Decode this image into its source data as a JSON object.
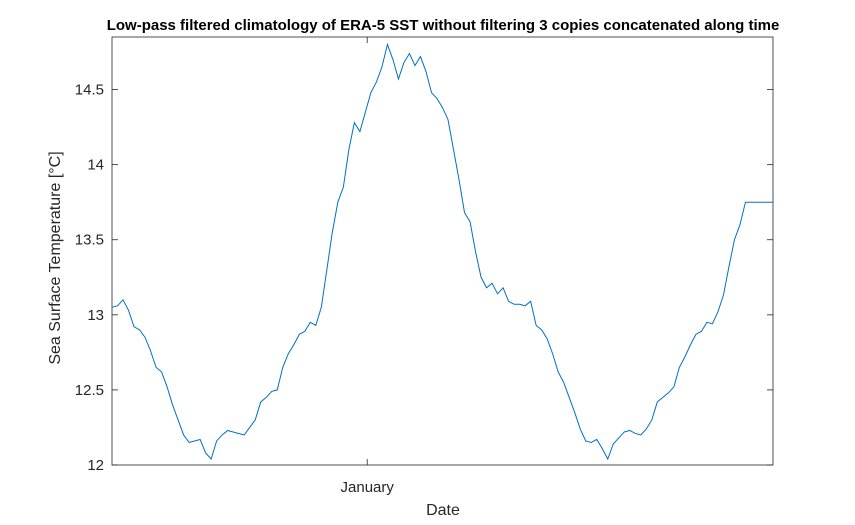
{
  "chart_data": {
    "type": "line",
    "title": "Low-pass filtered climatology of ERA-5 SST without filtering 3 copies concatenated along time",
    "xlabel": "Date",
    "ylabel": "Sea Surface Temperature [°C]",
    "ylim": [
      12,
      14.85
    ],
    "yticks": [
      12,
      12.5,
      13,
      13.5,
      14,
      14.5
    ],
    "ytick_labels": [
      "12",
      "12.5",
      "13",
      "13.5",
      "14",
      "14.5"
    ],
    "xlim": [
      0,
      360
    ],
    "xticks": [
      139
    ],
    "xtick_labels": [
      "January"
    ],
    "grid": false,
    "series": [
      {
        "color": "#0072bd",
        "x": [
          0,
          3,
          6,
          9,
          12,
          15,
          18,
          21,
          24,
          27,
          30,
          33,
          36,
          39,
          42,
          45,
          48,
          51,
          54,
          57,
          60,
          63,
          66,
          69,
          72,
          75,
          78,
          81,
          84,
          87,
          90,
          93,
          96,
          99,
          102,
          105,
          108,
          111,
          114,
          117,
          120,
          123,
          126,
          129,
          132,
          135,
          138,
          141,
          144,
          147,
          150,
          153,
          156,
          159,
          162,
          165,
          168,
          171,
          174,
          177,
          180,
          183,
          186,
          189,
          192,
          195,
          198,
          201,
          204,
          207,
          210,
          213,
          216,
          219,
          222,
          225,
          228,
          231,
          234,
          237,
          240,
          243,
          246,
          249,
          252,
          255,
          258,
          261,
          264,
          267,
          270,
          273,
          276,
          279,
          282,
          285,
          288,
          291,
          294,
          297,
          300,
          303,
          306,
          309,
          312,
          315,
          318,
          321,
          324,
          327,
          330,
          333,
          336,
          339,
          342,
          345,
          348,
          351,
          354,
          357,
          360
        ],
        "y": [
          13.05,
          13.06,
          13.1,
          13.03,
          12.92,
          12.9,
          12.85,
          12.76,
          12.65,
          12.62,
          12.52,
          12.4,
          12.3,
          12.2,
          12.15,
          12.16,
          12.17,
          12.08,
          12.04,
          12.16,
          12.2,
          12.23,
          12.22,
          12.21,
          12.2,
          12.25,
          12.3,
          12.42,
          12.45,
          12.49,
          12.5,
          12.65,
          12.74,
          12.8,
          12.87,
          12.89,
          12.95,
          12.93,
          13.05,
          13.3,
          13.55,
          13.75,
          13.85,
          14.1,
          14.28,
          14.22,
          14.35,
          14.48,
          14.55,
          14.65,
          14.8,
          14.7,
          14.57,
          14.68,
          14.74,
          14.66,
          14.72,
          14.62,
          14.48,
          14.44,
          14.38,
          14.3,
          14.1,
          13.9,
          13.68,
          13.62,
          13.42,
          13.25,
          13.18,
          13.21,
          13.14,
          13.18,
          13.09,
          13.07,
          13.07,
          13.06,
          13.09,
          12.93,
          12.9,
          12.84,
          12.74,
          12.62,
          12.55,
          12.45,
          12.35,
          12.24,
          12.16,
          12.15,
          12.17,
          12.11,
          12.04,
          12.14,
          12.18,
          12.22,
          12.23,
          12.21,
          12.2,
          12.24,
          12.3,
          12.42,
          12.45,
          12.48,
          12.52,
          12.65,
          12.72,
          12.8,
          12.87,
          12.89,
          12.95,
          12.94,
          13.02,
          13.13,
          13.32,
          13.5,
          13.6,
          13.75,
          13.75,
          13.75,
          13.75,
          13.75,
          13.75
        ]
      }
    ]
  }
}
